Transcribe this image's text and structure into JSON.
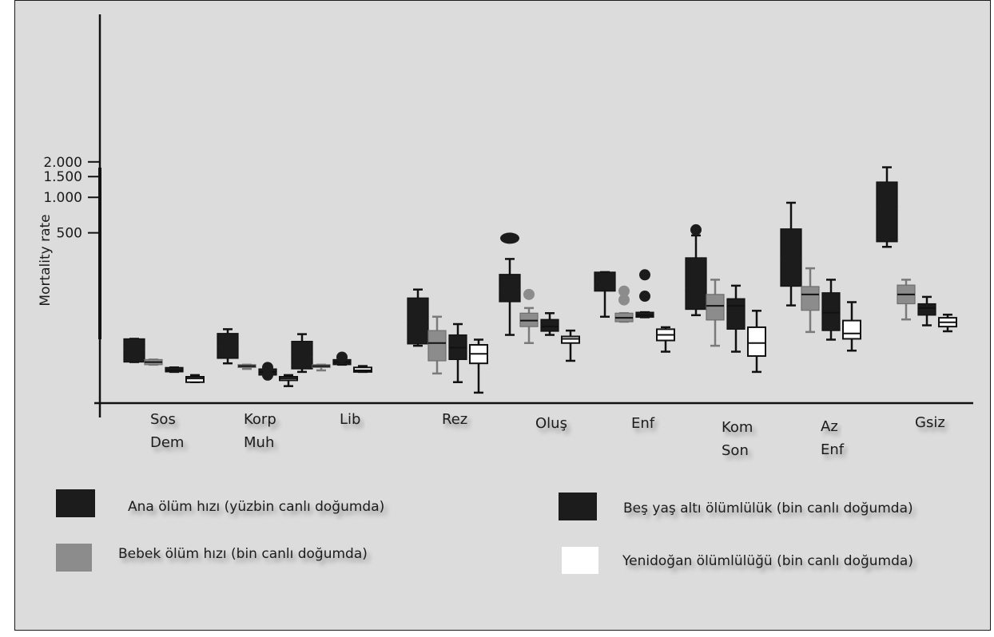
{
  "chart_data": {
    "type": "box",
    "title": "",
    "xlabel": "",
    "ylabel": "Mortality rate",
    "yscale": "log",
    "y_ticks": [
      {
        "value": 500,
        "label": "500"
      },
      {
        "value": 1000,
        "label": "1.000"
      },
      {
        "value": 1500,
        "label": "1.500"
      },
      {
        "value": 2000,
        "label": "2.000"
      }
    ],
    "categories": [
      {
        "id": "sos",
        "lines": [
          "Sos",
          "Dem"
        ]
      },
      {
        "id": "korp",
        "lines": [
          "Korp",
          "Muh"
        ]
      },
      {
        "id": "lib",
        "lines": [
          "Lib"
        ]
      },
      {
        "id": "rez",
        "lines": [
          "Rez"
        ]
      },
      {
        "id": "olus",
        "lines": [
          "Oluş"
        ]
      },
      {
        "id": "enf",
        "lines": [
          "Enf"
        ]
      },
      {
        "id": "kom",
        "lines": [
          "Kom",
          "Son"
        ]
      },
      {
        "id": "az",
        "lines": [
          "Az",
          "Enf"
        ]
      },
      {
        "id": "gsiz",
        "lines": [
          "Gsiz"
        ]
      }
    ],
    "series": [
      {
        "name": "Ana ölüm hızı (yüzbin canlı doğumda)",
        "color": "#1c1c1c",
        "boxes": [
          {
            "q1": 40,
            "med": 51,
            "q3": 63,
            "whislo": 40,
            "whishi": 63,
            "outliers": []
          },
          {
            "q1": 43,
            "med": 55,
            "q3": 70,
            "whislo": 39,
            "whishi": 76,
            "outliers": []
          },
          {
            "q1": 35,
            "med": 44,
            "q3": 60,
            "whislo": 33,
            "whishi": 69,
            "outliers": []
          },
          {
            "q1": 57,
            "med": 85,
            "q3": 140,
            "whislo": 55,
            "whishi": 165,
            "outliers": []
          },
          {
            "q1": 130,
            "med": 165,
            "q3": 222,
            "whislo": 68,
            "whishi": 300,
            "outliers": [
              450
            ]
          },
          {
            "q1": 160,
            "med": 180,
            "q3": 232,
            "whislo": 97,
            "whishi": 232,
            "outliers": []
          },
          {
            "q1": 112,
            "med": 170,
            "q3": 307,
            "whislo": 100,
            "whishi": 475,
            "outliers": [
              530
            ]
          },
          {
            "q1": 176,
            "med": 300,
            "q3": 540,
            "whislo": 121,
            "whishi": 900,
            "outliers": []
          },
          {
            "q1": 420,
            "med": 800,
            "q3": 1350,
            "whislo": 380,
            "whishi": 1800,
            "outliers": []
          }
        ]
      },
      {
        "name": "Bebek ölüm hızı (bin canlı doğumda)",
        "color": "#8c8c8c",
        "boxes": [
          {
            "q1": 38,
            "med": 40,
            "q3": 42,
            "whislo": 38,
            "whishi": 42,
            "outliers": []
          },
          {
            "q1": 36,
            "med": 37,
            "q3": 38,
            "whislo": 35,
            "whishi": 38,
            "outliers": []
          },
          {
            "q1": 36,
            "med": 37,
            "q3": 38,
            "whislo": 34,
            "whishi": 38,
            "outliers": []
          },
          {
            "q1": 41,
            "med": 58,
            "q3": 74,
            "whislo": 32,
            "whishi": 97,
            "outliers": []
          },
          {
            "q1": 80,
            "med": 90,
            "q3": 104,
            "whislo": 58,
            "whishi": 115,
            "outliers": [
              150
            ]
          },
          {
            "q1": 88,
            "med": 95,
            "q3": 104,
            "whislo": 88,
            "whishi": 104,
            "outliers": [
              135,
              160
            ]
          },
          {
            "q1": 91,
            "med": 120,
            "q3": 150,
            "whislo": 55,
            "whishi": 200,
            "outliers": []
          },
          {
            "q1": 110,
            "med": 150,
            "q3": 175,
            "whislo": 72,
            "whishi": 250,
            "outliers": []
          },
          {
            "q1": 125,
            "med": 150,
            "q3": 180,
            "whislo": 92,
            "whishi": 200,
            "outliers": []
          }
        ]
      },
      {
        "name": "Beş yaş altı ölümlülük (bin canlı doğumda)",
        "color": "#1c1c1c",
        "boxes": [
          {
            "q1": 33,
            "med": 34,
            "q3": 36,
            "whislo": 33,
            "whishi": 36,
            "outliers": []
          },
          {
            "q1": 31,
            "med": 33,
            "q3": 35,
            "whislo": 30,
            "whishi": 37,
            "outliers": [
              31,
              36
            ]
          },
          {
            "q1": 38,
            "med": 40,
            "q3": 42,
            "whislo": 38,
            "whishi": 42,
            "outliers": [
              44
            ]
          },
          {
            "q1": 42,
            "med": 53,
            "q3": 68,
            "whislo": 27,
            "whishi": 84,
            "outliers": []
          },
          {
            "q1": 73,
            "med": 80,
            "q3": 92,
            "whislo": 68,
            "whishi": 104,
            "outliers": []
          },
          {
            "q1": 96,
            "med": 100,
            "q3": 106,
            "whislo": 96,
            "whishi": 106,
            "outliers": [
              145,
              220
            ]
          },
          {
            "q1": 76,
            "med": 120,
            "q3": 138,
            "whislo": 49,
            "whishi": 178,
            "outliers": []
          },
          {
            "q1": 74,
            "med": 105,
            "q3": 155,
            "whislo": 62,
            "whishi": 200,
            "outliers": []
          },
          {
            "q1": 100,
            "med": 115,
            "q3": 125,
            "whislo": 82,
            "whishi": 143,
            "outliers": []
          }
        ]
      },
      {
        "name": "Yenidoğan ölümlülüğü (bin canlı doğumda)",
        "color": "#ffffff",
        "boxes": [
          {
            "q1": 27,
            "med": 29,
            "q3": 30,
            "whislo": 27,
            "whishi": 31,
            "outliers": []
          },
          {
            "q1": 28,
            "med": 29,
            "q3": 30,
            "whislo": 25,
            "whishi": 31,
            "outliers": []
          },
          {
            "q1": 33,
            "med": 34,
            "q3": 36,
            "whislo": 33,
            "whishi": 37,
            "outliers": []
          },
          {
            "q1": 39,
            "med": 47,
            "q3": 56,
            "whislo": 22,
            "whishi": 62,
            "outliers": []
          },
          {
            "q1": 58,
            "med": 63,
            "q3": 66,
            "whislo": 41,
            "whishi": 74,
            "outliers": []
          },
          {
            "q1": 61,
            "med": 68,
            "q3": 76,
            "whislo": 49,
            "whishi": 79,
            "outliers": []
          },
          {
            "q1": 45,
            "med": 58,
            "q3": 79,
            "whislo": 33,
            "whishi": 109,
            "outliers": []
          },
          {
            "q1": 63,
            "med": 70,
            "q3": 90,
            "whislo": 50,
            "whishi": 129,
            "outliers": []
          },
          {
            "q1": 80,
            "med": 87,
            "q3": 95,
            "whislo": 73,
            "whishi": 101,
            "outliers": []
          }
        ]
      }
    ],
    "legend": {
      "placement": "bottom",
      "items": [
        {
          "label": "Ana ölüm hızı (yüzbin canlı doğumda)",
          "color": "#1c1c1c"
        },
        {
          "label": "Beş yaş altı ölümlülük (bin canlı doğumda)",
          "color": "#1c1c1c"
        },
        {
          "label": "Bebek ölüm hızı (bin canlı doğumda)",
          "color": "#8c8c8c"
        },
        {
          "label": "Yenidoğan ölümlülüğü (bin canlı doğumda)",
          "color": "#ffffff"
        }
      ]
    }
  }
}
